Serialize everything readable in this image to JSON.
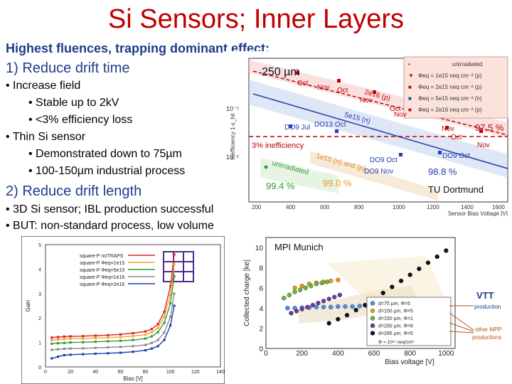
{
  "slide": {
    "title": "Si Sensors; Inner Layers",
    "subtitle": "Highest fluences, trapping dominant effect:",
    "section1": "1) Reduce drift time",
    "b1": "• Increase field",
    "b1a": "• Stable up to 2kV",
    "b1b": "• <3% efficiency loss",
    "b2": "• Thin Si sensor",
    "b2a": "• Demonstrated down to 75µm",
    "b2b": "• 100-150µm industrial process",
    "section2": "2) Reduce drift length",
    "b3": "• 3D Si sensor; IBL production successful",
    "b4": "• BUT: non-standard process, low volume"
  },
  "colors": {
    "title": "#c00000",
    "section": "#1f3c8a"
  },
  "chart_data": [
    {
      "type": "scatter",
      "title": "250 µm",
      "xlabel": "Sensor Bias Voltage [V]",
      "ylabel": "Inefficiency 1-ε_hit",
      "x_ticks": [
        "200",
        "400",
        "600",
        "800",
        "1000",
        "1200",
        "1400",
        "1600"
      ],
      "y_ticks": [
        "10⁻¹",
        "10⁻²"
      ],
      "xlim": [
        200,
        1600
      ],
      "legend": [
        "unirradiated",
        "Φeq = 1e15 neq cm⁻² (p)",
        "Φeq = 2e15 neq cm⁻² (p)",
        "Φeq = 5e15 neq cm⁻² (n)",
        "Φeq = 2e16 neq cm⁻² (p)"
      ],
      "annotations": {
        "a975": "97.5 %",
        "a988": "98.8 %",
        "a994": "99.4 %",
        "a990": "99.0 %",
        "ineff": "3% inefficiency",
        "tu": "TU Dortmund",
        "band_2e16": "2e16 (p)",
        "band_5e15": "5e15 (n)",
        "band_1e15": "1e15 (n) and (p)",
        "band_unirr": "unirradiated",
        "oct1": "Oct",
        "nov1": "Nov",
        "oct2": "Oct",
        "nov2": "Nov",
        "oct3": "Oct",
        "nov3": "Nov",
        "nov4": "Nov",
        "oct4": "Oct",
        "nov5": "Nov",
        "do9jul": "DO9 Jul",
        "do13oct": "DO13 Oct",
        "do9oct1": "DO9 Oct",
        "do9oct2": "DO9 Oct",
        "do9nov": "DO9 Nov"
      }
    },
    {
      "type": "line",
      "xlabel": "Bias [V]",
      "ylabel": "Gain",
      "x_ticks": [
        "0",
        "20",
        "40",
        "60",
        "80",
        "100",
        "120",
        "140"
      ],
      "y_ticks": [
        "0",
        "1",
        "2",
        "3",
        "4",
        "5"
      ],
      "xlim": [
        0,
        140
      ],
      "ylim": [
        0,
        5
      ],
      "series": [
        {
          "name": "square-P noTRAPS",
          "color": "#d62728",
          "x": [
            5,
            10,
            15,
            20,
            30,
            40,
            50,
            60,
            70,
            80,
            85,
            90,
            95,
            100,
            103
          ],
          "values": [
            1.2,
            1.22,
            1.24,
            1.25,
            1.26,
            1.28,
            1.3,
            1.33,
            1.38,
            1.45,
            1.55,
            1.75,
            2.25,
            3.3,
            4.6
          ]
        },
        {
          "name": "square-P Φeq=1e15",
          "color": "#ff9d3a",
          "x": [
            5,
            10,
            15,
            20,
            30,
            40,
            50,
            60,
            70,
            80,
            85,
            90,
            95,
            100,
            103
          ],
          "values": [
            1.1,
            1.12,
            1.14,
            1.15,
            1.16,
            1.18,
            1.2,
            1.22,
            1.26,
            1.32,
            1.42,
            1.6,
            2.05,
            2.95,
            4.2
          ]
        },
        {
          "name": "square-P Φeq=5e15",
          "color": "#2ca02c",
          "x": [
            5,
            10,
            15,
            20,
            30,
            40,
            50,
            60,
            70,
            80,
            85,
            90,
            95,
            100,
            103
          ],
          "values": [
            0.95,
            0.97,
            0.98,
            1.0,
            1.01,
            1.03,
            1.05,
            1.07,
            1.1,
            1.16,
            1.25,
            1.42,
            1.8,
            2.6,
            3.7
          ]
        },
        {
          "name": "square-P Φeq=1e16",
          "color": "#8c8c8c",
          "x": [
            5,
            10,
            15,
            20,
            30,
            40,
            50,
            60,
            70,
            80,
            85,
            90,
            95,
            100,
            103
          ],
          "values": [
            0.7,
            0.72,
            0.74,
            0.75,
            0.76,
            0.78,
            0.8,
            0.82,
            0.85,
            0.9,
            0.98,
            1.1,
            1.4,
            2.05,
            3.0
          ]
        },
        {
          "name": "square-P Φeq=2e16",
          "color": "#1f3fb0",
          "x": [
            5,
            10,
            15,
            20,
            30,
            40,
            50,
            60,
            70,
            80,
            85,
            90,
            95,
            100,
            103
          ],
          "values": [
            0.35,
            0.42,
            0.48,
            0.5,
            0.52,
            0.54,
            0.56,
            0.58,
            0.62,
            0.68,
            0.75,
            0.85,
            1.1,
            1.7,
            2.5
          ]
        }
      ]
    },
    {
      "type": "scatter",
      "title": "MPI Munich",
      "xlabel": "Bias voltage [V]",
      "ylabel": "Collected charge [ke]",
      "x_ticks": [
        "0",
        "200",
        "400",
        "600",
        "800",
        "1000"
      ],
      "y_ticks": [
        "0",
        "2",
        "4",
        "6",
        "8",
        "10"
      ],
      "xlim": [
        0,
        1050
      ],
      "ylim": [
        0,
        11
      ],
      "series": [
        {
          "name": "d=75 µm, Φ=5",
          "color": "#4a8fe0",
          "x": [
            120,
            160,
            200,
            240,
            280,
            320,
            360,
            400,
            440,
            480,
            520,
            560,
            600
          ],
          "values": [
            4.0,
            4.0,
            4.05,
            4.05,
            4.1,
            4.1,
            4.1,
            4.15,
            4.15,
            4.15,
            4.2,
            4.2,
            4.2
          ]
        },
        {
          "name": "d=100 µm, Φ=5",
          "color": "#e89a1c",
          "x": [
            160,
            200,
            240,
            280,
            320,
            360,
            400
          ],
          "values": [
            6.0,
            6.2,
            6.4,
            6.5,
            6.6,
            6.7,
            6.8
          ]
        },
        {
          "name": "d=150 µm, Φ=1",
          "color": "#6db33f",
          "x": [
            100,
            130,
            160,
            190,
            220,
            250,
            280,
            310,
            340
          ],
          "values": [
            5.0,
            5.3,
            5.6,
            5.8,
            6.0,
            6.2,
            6.4,
            6.5,
            6.6
          ]
        },
        {
          "name": "d=200 µm, Φ=6",
          "color": "#6a3aa0",
          "x": [
            140,
            170,
            200,
            230,
            260,
            290,
            320,
            350,
            380,
            410
          ],
          "values": [
            3.5,
            3.7,
            3.9,
            4.1,
            4.3,
            4.5,
            4.7,
            4.9,
            5.1,
            5.3
          ]
        },
        {
          "name": "d=285 µm, Φ=5",
          "color": "#111111",
          "x": [
            350,
            400,
            450,
            500,
            550,
            600,
            650,
            700,
            750,
            800,
            850,
            900,
            950,
            1000
          ],
          "values": [
            2.5,
            2.9,
            3.3,
            3.8,
            4.3,
            4.9,
            5.5,
            6.1,
            6.7,
            7.3,
            7.9,
            8.5,
            9.1,
            9.7
          ]
        }
      ],
      "legend_footer": "Φ = 10¹⁵ neq/cm²",
      "side_labels": {
        "vtt": "VTT",
        "vtt_sub": "production",
        "other": "other MPP",
        "other2": "productions"
      }
    }
  ]
}
